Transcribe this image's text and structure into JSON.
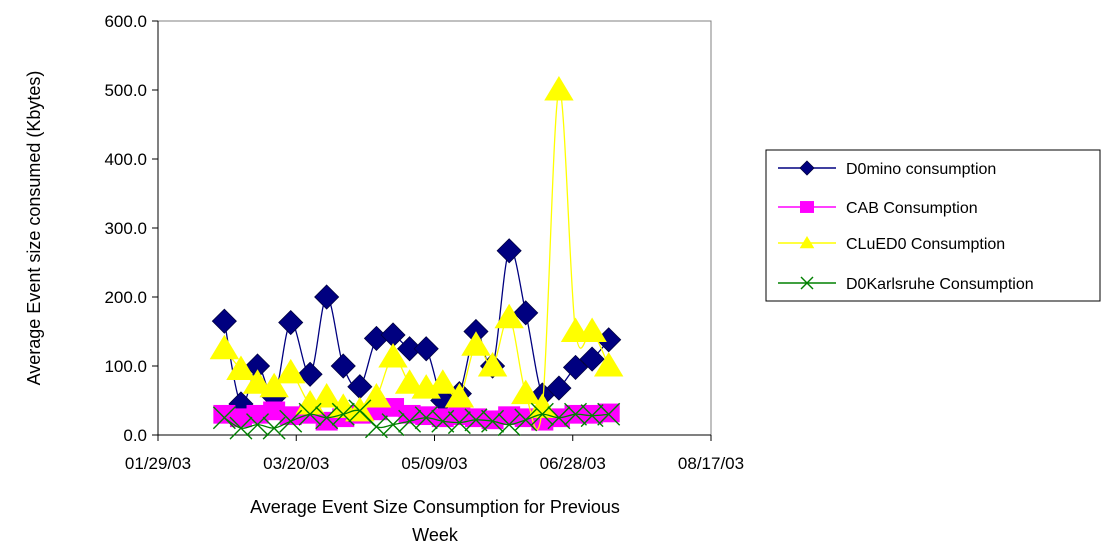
{
  "chart_data": {
    "type": "line",
    "title": "",
    "xlabel_lines": [
      "Average Event Size Consumption for Previous",
      "Week"
    ],
    "ylabel": "Average Event size consumed (Kbytes)",
    "ylim": [
      0,
      600
    ],
    "y_ticks": [
      "0.0",
      "100.0",
      "200.0",
      "300.0",
      "400.0",
      "500.0",
      "600.0"
    ],
    "xlim": [
      "2003-01-29",
      "2003-08-17"
    ],
    "x_ticks": [
      "01/29/03",
      "03/20/03",
      "05/09/03",
      "06/28/03",
      "08/17/03"
    ],
    "grid": false,
    "legend_position": "right",
    "series": [
      {
        "name": "D0mino consumption",
        "color": "#000080",
        "marker": "diamond",
        "points": [
          [
            "2003-02-22",
            165
          ],
          [
            "2003-02-28",
            45
          ],
          [
            "2003-03-06",
            100
          ],
          [
            "2003-03-12",
            55
          ],
          [
            "2003-03-18",
            163
          ],
          [
            "2003-03-25",
            88
          ],
          [
            "2003-03-31",
            200
          ],
          [
            "2003-04-06",
            100
          ],
          [
            "2003-04-12",
            70
          ],
          [
            "2003-04-18",
            140
          ],
          [
            "2003-04-24",
            145
          ],
          [
            "2003-04-30",
            125
          ],
          [
            "2003-05-06",
            125
          ],
          [
            "2003-05-12",
            50
          ],
          [
            "2003-05-18",
            60
          ],
          [
            "2003-05-24",
            150
          ],
          [
            "2003-05-30",
            100
          ],
          [
            "2003-06-05",
            267
          ],
          [
            "2003-06-11",
            177
          ],
          [
            "2003-06-17",
            58
          ],
          [
            "2003-06-23",
            68
          ],
          [
            "2003-06-29",
            98
          ],
          [
            "2003-07-05",
            110
          ],
          [
            "2003-07-11",
            138
          ]
        ]
      },
      {
        "name": "CAB Consumption",
        "color": "#ff00ff",
        "marker": "square",
        "points": [
          [
            "2003-02-22",
            30
          ],
          [
            "2003-02-28",
            25
          ],
          [
            "2003-03-06",
            30
          ],
          [
            "2003-03-12",
            35
          ],
          [
            "2003-03-18",
            28
          ],
          [
            "2003-03-25",
            30
          ],
          [
            "2003-03-31",
            20
          ],
          [
            "2003-04-06",
            25
          ],
          [
            "2003-04-12",
            30
          ],
          [
            "2003-04-18",
            35
          ],
          [
            "2003-04-24",
            40
          ],
          [
            "2003-04-30",
            30
          ],
          [
            "2003-05-06",
            28
          ],
          [
            "2003-05-12",
            25
          ],
          [
            "2003-05-18",
            28
          ],
          [
            "2003-05-24",
            25
          ],
          [
            "2003-05-30",
            22
          ],
          [
            "2003-06-05",
            28
          ],
          [
            "2003-06-11",
            25
          ],
          [
            "2003-06-17",
            20
          ],
          [
            "2003-06-23",
            25
          ],
          [
            "2003-06-29",
            30
          ],
          [
            "2003-07-05",
            30
          ],
          [
            "2003-07-11",
            32
          ]
        ]
      },
      {
        "name": "CLuED0 Consumption",
        "color": "#ffff00",
        "marker": "triangle",
        "points": [
          [
            "2003-02-22",
            125
          ],
          [
            "2003-02-28",
            95
          ],
          [
            "2003-03-06",
            75
          ],
          [
            "2003-03-12",
            70
          ],
          [
            "2003-03-18",
            90
          ],
          [
            "2003-03-25",
            45
          ],
          [
            "2003-03-31",
            55
          ],
          [
            "2003-04-06",
            40
          ],
          [
            "2003-04-12",
            35
          ],
          [
            "2003-04-18",
            55
          ],
          [
            "2003-04-24",
            113
          ],
          [
            "2003-04-30",
            75
          ],
          [
            "2003-05-06",
            68
          ],
          [
            "2003-05-12",
            75
          ],
          [
            "2003-05-18",
            55
          ],
          [
            "2003-05-24",
            130
          ],
          [
            "2003-05-30",
            100
          ],
          [
            "2003-06-05",
            170
          ],
          [
            "2003-06-11",
            60
          ],
          [
            "2003-06-17",
            40
          ],
          [
            "2003-06-23",
            500
          ],
          [
            "2003-06-29",
            150
          ],
          [
            "2003-07-05",
            150
          ],
          [
            "2003-07-11",
            100
          ]
        ]
      },
      {
        "name": "D0Karlsruhe Consumption",
        "color": "#008000",
        "marker": "x",
        "points": [
          [
            "2003-02-22",
            25
          ],
          [
            "2003-02-28",
            10
          ],
          [
            "2003-03-06",
            15
          ],
          [
            "2003-03-12",
            10
          ],
          [
            "2003-03-18",
            20
          ],
          [
            "2003-03-25",
            30
          ],
          [
            "2003-03-31",
            25
          ],
          [
            "2003-04-06",
            30
          ],
          [
            "2003-04-12",
            35
          ],
          [
            "2003-04-18",
            12
          ],
          [
            "2003-04-24",
            15
          ],
          [
            "2003-04-30",
            20
          ],
          [
            "2003-05-06",
            25
          ],
          [
            "2003-05-12",
            20
          ],
          [
            "2003-05-18",
            18
          ],
          [
            "2003-05-24",
            22
          ],
          [
            "2003-05-30",
            20
          ],
          [
            "2003-06-05",
            15
          ],
          [
            "2003-06-11",
            22
          ],
          [
            "2003-06-17",
            30
          ],
          [
            "2003-06-23",
            25
          ],
          [
            "2003-06-29",
            30
          ],
          [
            "2003-07-05",
            28
          ],
          [
            "2003-07-11",
            30
          ]
        ]
      }
    ]
  }
}
